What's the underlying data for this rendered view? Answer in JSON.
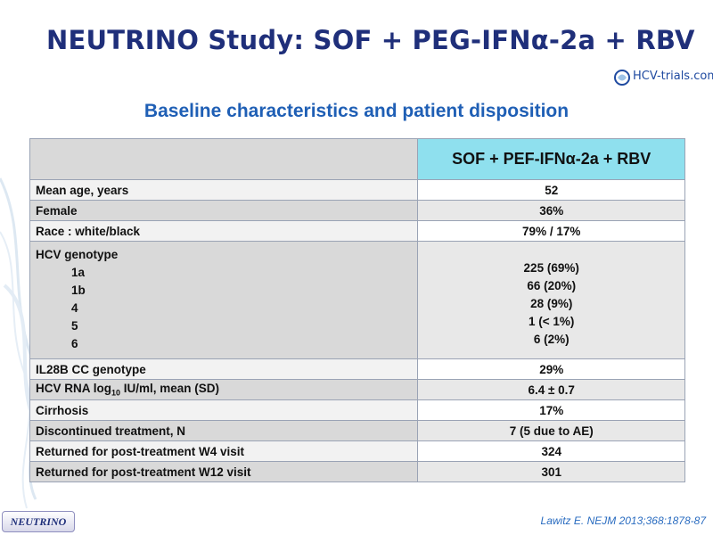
{
  "slide": {
    "title": "NEUTRINO Study: SOF + PEG-IFNα-2a + RBV",
    "logo": "HCV-trials.com",
    "subtitle": "Baseline characteristics and patient disposition",
    "column_header": "SOF + PEF-IFNα-2a + RBV",
    "rows": [
      {
        "label": "Mean age, years",
        "value": "52"
      },
      {
        "label": "Female",
        "value": "36%"
      },
      {
        "label": "Race : white/black",
        "value": "79% / 17%"
      }
    ],
    "genotype": {
      "label": "HCV genotype",
      "items": [
        {
          "label": "1a",
          "value": "225 (69%)"
        },
        {
          "label": "1b",
          "value": "66 (20%)"
        },
        {
          "label": "4",
          "value": "28 (9%)"
        },
        {
          "label": "5",
          "value": "1 (< 1%)"
        },
        {
          "label": "6",
          "value": "6 (2%)"
        }
      ]
    },
    "rows2": [
      {
        "label": "IL28B CC genotype",
        "value": "29%"
      },
      {
        "label_pre": "HCV RNA log",
        "label_sub": "10",
        "label_post": " IU/ml, mean (SD)",
        "value": "6.4 ± 0.7"
      },
      {
        "label": "Cirrhosis",
        "value": "17%"
      },
      {
        "label": "Discontinued treatment, N",
        "value": "7 (5 due to AE)"
      },
      {
        "label": "Returned for post-treatment W4 visit",
        "value": "324"
      },
      {
        "label": "Returned for post-treatment W12 visit",
        "value": "301"
      }
    ],
    "badge": "NEUTRINO",
    "citation": "Lawitz  E. NEJM 2013;368:1878-87"
  }
}
